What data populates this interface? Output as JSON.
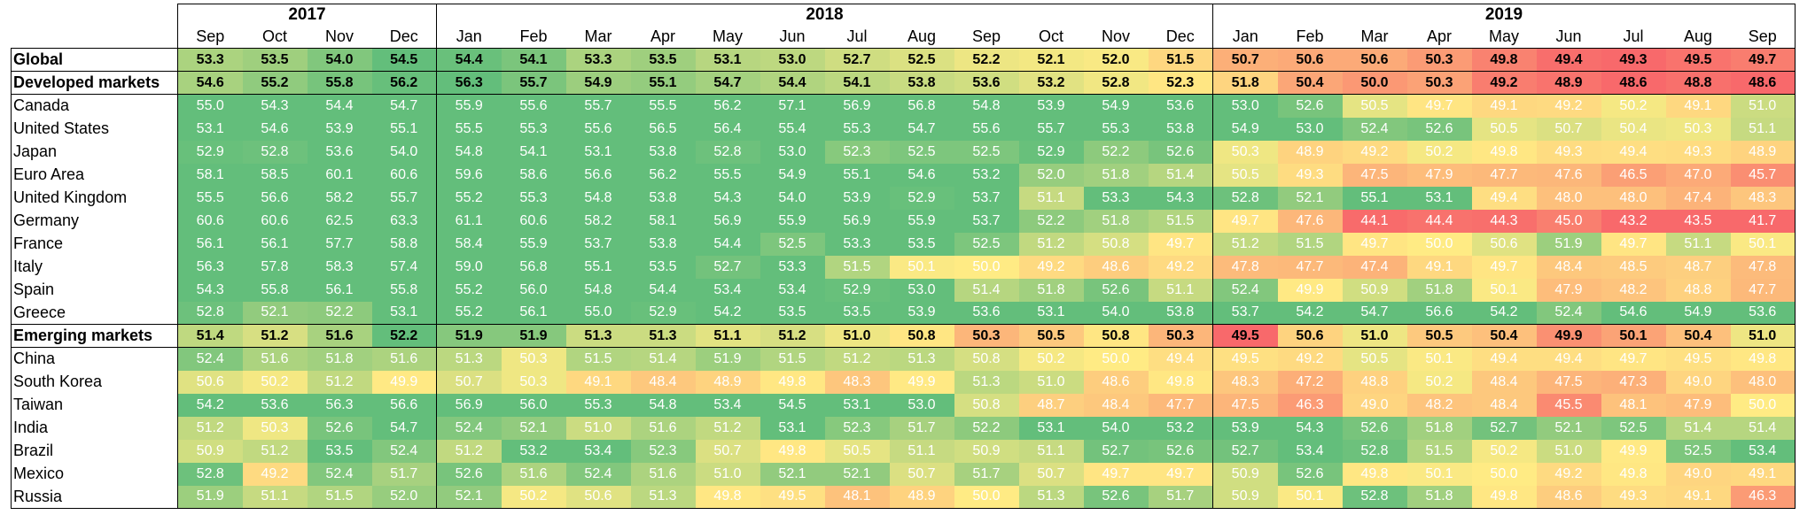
{
  "chart_data": {
    "type": "heatmap",
    "years": [
      {
        "label": "2017",
        "span": 4
      },
      {
        "label": "2018",
        "span": 12
      },
      {
        "label": "2019",
        "span": 9
      }
    ],
    "months": [
      "Sep",
      "Oct",
      "Nov",
      "Dec",
      "Jan",
      "Feb",
      "Mar",
      "Apr",
      "May",
      "Jun",
      "Jul",
      "Aug",
      "Sep",
      "Oct",
      "Nov",
      "Dec",
      "Jan",
      "Feb",
      "Mar",
      "Apr",
      "May",
      "Jun",
      "Jul",
      "Aug",
      "Sep"
    ],
    "rows": [
      {
        "name": "Global",
        "aggregate": true,
        "values": [
          "53.3",
          "53.5",
          "54.0",
          "54.5",
          "54.4",
          "54.1",
          "53.3",
          "53.5",
          "53.1",
          "53.0",
          "52.7",
          "52.5",
          "52.2",
          "52.1",
          "52.0",
          "51.5",
          "50.7",
          "50.6",
          "50.6",
          "50.3",
          "49.8",
          "49.4",
          "49.3",
          "49.5",
          "49.7"
        ]
      },
      {
        "name": "Developed markets",
        "aggregate": true,
        "values": [
          "54.6",
          "55.2",
          "55.8",
          "56.2",
          "56.3",
          "55.7",
          "54.9",
          "55.1",
          "54.7",
          "54.4",
          "54.1",
          "53.8",
          "53.6",
          "53.2",
          "52.8",
          "52.3",
          "51.8",
          "50.4",
          "50.0",
          "50.3",
          "49.2",
          "48.9",
          "48.6",
          "48.8",
          "48.6"
        ]
      },
      {
        "name": "Canada",
        "aggregate": false,
        "values": [
          "55.0",
          "54.3",
          "54.4",
          "54.7",
          "55.9",
          "55.6",
          "55.7",
          "55.5",
          "56.2",
          "57.1",
          "56.9",
          "56.8",
          "54.8",
          "53.9",
          "54.9",
          "53.6",
          "53.0",
          "52.6",
          "50.5",
          "49.7",
          "49.1",
          "49.2",
          "50.2",
          "49.1",
          "51.0"
        ]
      },
      {
        "name": "United States",
        "aggregate": false,
        "values": [
          "53.1",
          "54.6",
          "53.9",
          "55.1",
          "55.5",
          "55.3",
          "55.6",
          "56.5",
          "56.4",
          "55.4",
          "55.3",
          "54.7",
          "55.6",
          "55.7",
          "55.3",
          "53.8",
          "54.9",
          "53.0",
          "52.4",
          "52.6",
          "50.5",
          "50.7",
          "50.4",
          "50.3",
          "51.1"
        ]
      },
      {
        "name": "Japan",
        "aggregate": false,
        "values": [
          "52.9",
          "52.8",
          "53.6",
          "54.0",
          "54.8",
          "54.1",
          "53.1",
          "53.8",
          "52.8",
          "53.0",
          "52.3",
          "52.5",
          "52.5",
          "52.9",
          "52.2",
          "52.6",
          "50.3",
          "48.9",
          "49.2",
          "50.2",
          "49.8",
          "49.3",
          "49.4",
          "49.3",
          "48.9"
        ]
      },
      {
        "name": "Euro Area",
        "aggregate": false,
        "values": [
          "58.1",
          "58.5",
          "60.1",
          "60.6",
          "59.6",
          "58.6",
          "56.6",
          "56.2",
          "55.5",
          "54.9",
          "55.1",
          "54.6",
          "53.2",
          "52.0",
          "51.8",
          "51.4",
          "50.5",
          "49.3",
          "47.5",
          "47.9",
          "47.7",
          "47.6",
          "46.5",
          "47.0",
          "45.7"
        ]
      },
      {
        "name": "United Kingdom",
        "aggregate": false,
        "values": [
          "55.5",
          "56.6",
          "58.2",
          "55.7",
          "55.2",
          "55.3",
          "54.8",
          "53.8",
          "54.3",
          "54.0",
          "53.9",
          "52.9",
          "53.7",
          "51.1",
          "53.3",
          "54.3",
          "52.8",
          "52.1",
          "55.1",
          "53.1",
          "49.4",
          "48.0",
          "48.0",
          "47.4",
          "48.3"
        ]
      },
      {
        "name": "Germany",
        "aggregate": false,
        "values": [
          "60.6",
          "60.6",
          "62.5",
          "63.3",
          "61.1",
          "60.6",
          "58.2",
          "58.1",
          "56.9",
          "55.9",
          "56.9",
          "55.9",
          "53.7",
          "52.2",
          "51.8",
          "51.5",
          "49.7",
          "47.6",
          "44.1",
          "44.4",
          "44.3",
          "45.0",
          "43.2",
          "43.5",
          "41.7"
        ]
      },
      {
        "name": "France",
        "aggregate": false,
        "values": [
          "56.1",
          "56.1",
          "57.7",
          "58.8",
          "58.4",
          "55.9",
          "53.7",
          "53.8",
          "54.4",
          "52.5",
          "53.3",
          "53.5",
          "52.5",
          "51.2",
          "50.8",
          "49.7",
          "51.2",
          "51.5",
          "49.7",
          "50.0",
          "50.6",
          "51.9",
          "49.7",
          "51.1",
          "50.1"
        ]
      },
      {
        "name": "Italy",
        "aggregate": false,
        "values": [
          "56.3",
          "57.8",
          "58.3",
          "57.4",
          "59.0",
          "56.8",
          "55.1",
          "53.5",
          "52.7",
          "53.3",
          "51.5",
          "50.1",
          "50.0",
          "49.2",
          "48.6",
          "49.2",
          "47.8",
          "47.7",
          "47.4",
          "49.1",
          "49.7",
          "48.4",
          "48.5",
          "48.7",
          "47.8"
        ]
      },
      {
        "name": "Spain",
        "aggregate": false,
        "values": [
          "54.3",
          "55.8",
          "56.1",
          "55.8",
          "55.2",
          "56.0",
          "54.8",
          "54.4",
          "53.4",
          "53.4",
          "52.9",
          "53.0",
          "51.4",
          "51.8",
          "52.6",
          "51.1",
          "52.4",
          "49.9",
          "50.9",
          "51.8",
          "50.1",
          "47.9",
          "48.2",
          "48.8",
          "47.7"
        ]
      },
      {
        "name": "Greece",
        "aggregate": false,
        "values": [
          "52.8",
          "52.1",
          "52.2",
          "53.1",
          "55.2",
          "56.1",
          "55.0",
          "52.9",
          "54.2",
          "53.5",
          "53.5",
          "53.9",
          "53.6",
          "53.1",
          "54.0",
          "53.8",
          "53.7",
          "54.2",
          "54.7",
          "56.6",
          "54.2",
          "52.4",
          "54.6",
          "54.9",
          "53.6"
        ]
      },
      {
        "name": "Emerging markets",
        "aggregate": true,
        "values": [
          "51.4",
          "51.2",
          "51.6",
          "52.2",
          "51.9",
          "51.9",
          "51.3",
          "51.3",
          "51.1",
          "51.2",
          "51.0",
          "50.8",
          "50.3",
          "50.5",
          "50.8",
          "50.3",
          "49.5",
          "50.6",
          "51.0",
          "50.5",
          "50.4",
          "49.9",
          "50.1",
          "50.4",
          "51.0"
        ]
      },
      {
        "name": "China",
        "aggregate": false,
        "values": [
          "52.4",
          "51.6",
          "51.8",
          "51.6",
          "51.3",
          "50.3",
          "51.5",
          "51.4",
          "51.9",
          "51.5",
          "51.2",
          "51.3",
          "50.8",
          "50.2",
          "50.0",
          "49.4",
          "49.5",
          "49.2",
          "50.5",
          "50.1",
          "49.4",
          "49.4",
          "49.7",
          "49.5",
          "49.8"
        ]
      },
      {
        "name": "South Korea",
        "aggregate": false,
        "values": [
          "50.6",
          "50.2",
          "51.2",
          "49.9",
          "50.7",
          "50.3",
          "49.1",
          "48.4",
          "48.9",
          "49.8",
          "48.3",
          "49.9",
          "51.3",
          "51.0",
          "48.6",
          "49.8",
          "48.3",
          "47.2",
          "48.8",
          "50.2",
          "48.4",
          "47.5",
          "47.3",
          "49.0",
          "48.0"
        ]
      },
      {
        "name": "Taiwan",
        "aggregate": false,
        "values": [
          "54.2",
          "53.6",
          "56.3",
          "56.6",
          "56.9",
          "56.0",
          "55.3",
          "54.8",
          "53.4",
          "54.5",
          "53.1",
          "53.0",
          "50.8",
          "48.7",
          "48.4",
          "47.7",
          "47.5",
          "46.3",
          "49.0",
          "48.2",
          "48.4",
          "45.5",
          "48.1",
          "47.9",
          "50.0"
        ]
      },
      {
        "name": "India",
        "aggregate": false,
        "values": [
          "51.2",
          "50.3",
          "52.6",
          "54.7",
          "52.4",
          "52.1",
          "51.0",
          "51.6",
          "51.2",
          "53.1",
          "52.3",
          "51.7",
          "52.2",
          "53.1",
          "54.0",
          "53.2",
          "53.9",
          "54.3",
          "52.6",
          "51.8",
          "52.7",
          "52.1",
          "52.5",
          "51.4",
          "51.4"
        ]
      },
      {
        "name": "Brazil",
        "aggregate": false,
        "values": [
          "50.9",
          "51.2",
          "53.5",
          "52.4",
          "51.2",
          "53.2",
          "53.4",
          "52.3",
          "50.7",
          "49.8",
          "50.5",
          "51.1",
          "50.9",
          "51.1",
          "52.7",
          "52.6",
          "52.7",
          "53.4",
          "52.8",
          "51.5",
          "50.2",
          "51.0",
          "49.9",
          "52.5",
          "53.4"
        ]
      },
      {
        "name": "Mexico",
        "aggregate": false,
        "values": [
          "52.8",
          "49.2",
          "52.4",
          "51.7",
          "52.6",
          "51.6",
          "52.4",
          "51.6",
          "51.0",
          "52.1",
          "52.1",
          "50.7",
          "51.7",
          "50.7",
          "49.7",
          "49.7",
          "50.9",
          "52.6",
          "49.8",
          "50.1",
          "50.0",
          "49.2",
          "49.8",
          "49.0",
          "49.1"
        ]
      },
      {
        "name": "Russia",
        "aggregate": false,
        "values": [
          "51.9",
          "51.1",
          "51.5",
          "52.0",
          "52.1",
          "50.2",
          "50.6",
          "51.3",
          "49.8",
          "49.5",
          "48.1",
          "48.9",
          "50.0",
          "51.3",
          "52.6",
          "51.7",
          "50.9",
          "50.1",
          "52.8",
          "51.8",
          "49.8",
          "48.6",
          "49.3",
          "49.1",
          "46.3"
        ]
      }
    ],
    "color_scale": {
      "low": "#f8696b",
      "mid": "#ffeb84",
      "high": "#63be7b"
    }
  }
}
